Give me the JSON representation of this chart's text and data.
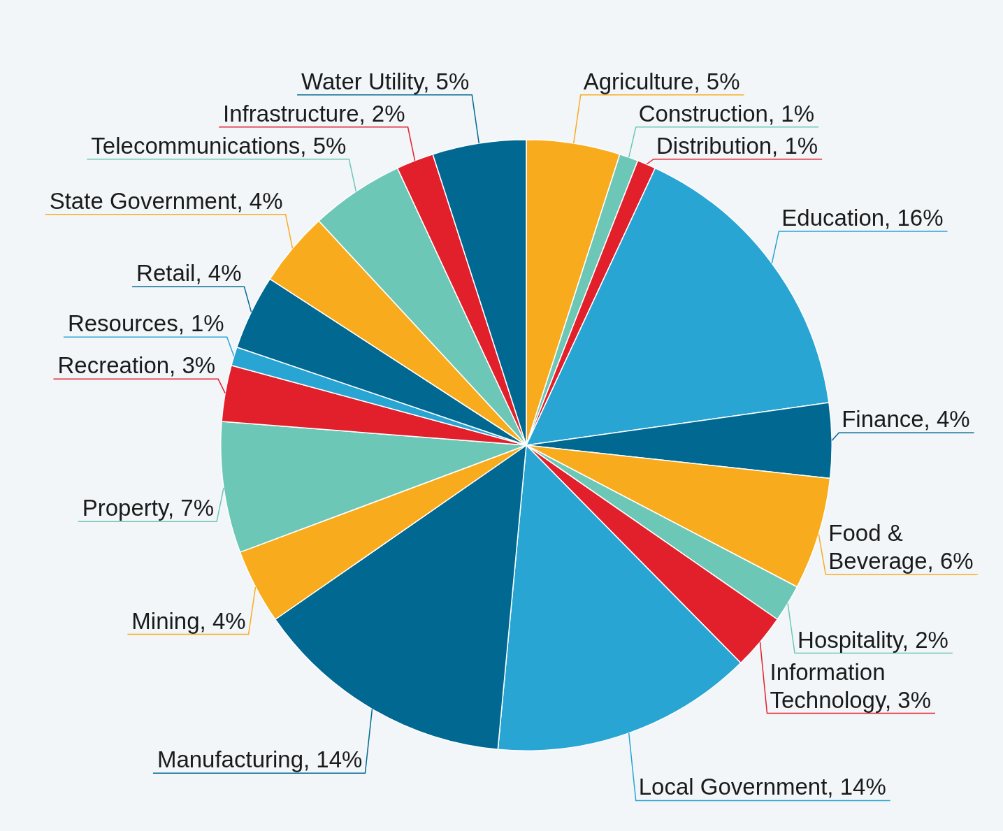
{
  "chart_data": {
    "type": "pie",
    "categories": [
      "Agriculture",
      "Construction",
      "Distribution",
      "Education",
      "Finance",
      "Food & Beverage",
      "Hospitality",
      "Information Technology",
      "Local Government",
      "Manufacturing",
      "Mining",
      "Property",
      "Recreation",
      "Resources",
      "Retail",
      "State Government",
      "Telecommunications",
      "Infrastructure",
      "Water Utility"
    ],
    "values": [
      5,
      1,
      1,
      16,
      4,
      6,
      2,
      3,
      14,
      14,
      4,
      7,
      3,
      1,
      4,
      4,
      5,
      2,
      5
    ],
    "value_labels": [
      "5%",
      "1%",
      "1%",
      "16%",
      "4%",
      "6%",
      "2%",
      "3%",
      "14%",
      "14%",
      "4%",
      "7%",
      "3%",
      "1%",
      "4%",
      "4%",
      "5%",
      "2%",
      "5%"
    ],
    "colors": [
      "#f9ab1e",
      "#6cc7b6",
      "#e2202c",
      "#29a5d3",
      "#016891",
      "#f9ab1e",
      "#6cc7b6",
      "#e2202c",
      "#29a5d3",
      "#016891",
      "#f9ab1e",
      "#6cc7b6",
      "#e2202c",
      "#29a5d3",
      "#016891",
      "#f9ab1e",
      "#6cc7b6",
      "#e2202c",
      "#016891"
    ],
    "legend": false
  }
}
